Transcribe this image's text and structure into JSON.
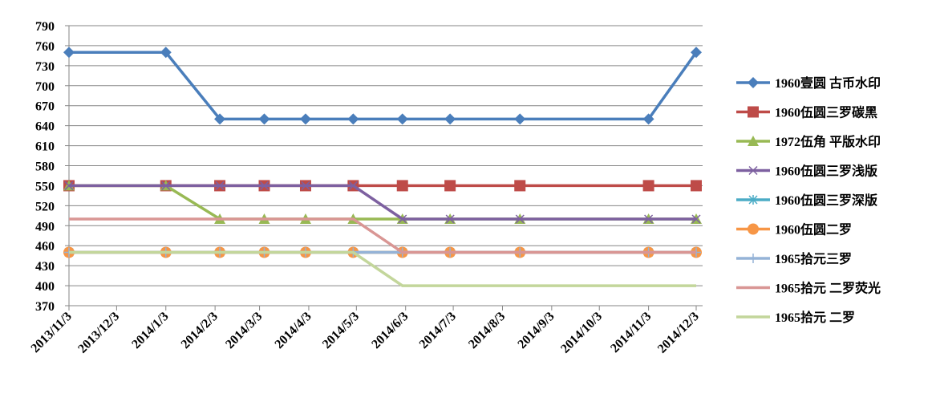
{
  "chart_data": {
    "type": "line",
    "x": [
      "2013/11/3",
      "2014/1/3",
      "2014/2/6",
      "2014/3/6",
      "2014/4/1",
      "2014/5/1",
      "2014/6/1",
      "2014/7/1",
      "2014/8/14",
      "2014/11/3",
      "2014/12/3"
    ],
    "xlim": [
      "2013/11/3",
      "2014/12/3"
    ],
    "xticks": [
      "2013/11/3",
      "2013/12/3",
      "2014/1/3",
      "2014/2/3",
      "2014/3/3",
      "2014/4/3",
      "2014/5/3",
      "2014/6/3",
      "2014/7/3",
      "2014/8/3",
      "2014/9/3",
      "2014/10/3",
      "2014/11/3",
      "2014/12/3"
    ],
    "ylim": [
      370,
      790
    ],
    "yticks": [
      370,
      400,
      430,
      460,
      490,
      520,
      550,
      580,
      610,
      640,
      670,
      700,
      730,
      760,
      790
    ],
    "grid": true,
    "series": [
      {
        "name": "1960壹圆 古币水印",
        "color": "#4a7ebb",
        "marker": "diamond",
        "values": [
          750,
          750,
          650,
          650,
          650,
          650,
          650,
          650,
          650,
          650,
          750
        ]
      },
      {
        "name": "1960伍圆三罗碳黑",
        "color": "#be4b48",
        "marker": "square",
        "values": [
          550,
          550,
          550,
          550,
          550,
          550,
          550,
          550,
          550,
          550,
          550
        ]
      },
      {
        "name": "1972伍角 平版水印",
        "color": "#98b954",
        "marker": "triangle",
        "values": [
          550,
          550,
          500,
          500,
          500,
          500,
          500,
          500,
          500,
          500,
          500
        ]
      },
      {
        "name": "1960伍圆三罗浅版",
        "color": "#7d60a0",
        "marker": "x",
        "values": [
          550,
          550,
          550,
          550,
          550,
          550,
          500,
          500,
          500,
          500,
          500
        ]
      },
      {
        "name": "1960伍圆三罗深版",
        "color": "#4bacc6",
        "marker": "star",
        "values": [
          450,
          450,
          450,
          450,
          450,
          450,
          450,
          450,
          450,
          450,
          450
        ]
      },
      {
        "name": "1960伍圆二罗",
        "color": "#f79646",
        "marker": "circle",
        "values": [
          450,
          450,
          450,
          450,
          450,
          450,
          450,
          450,
          450,
          450,
          450
        ]
      },
      {
        "name": "1965拾元三罗",
        "color": "#95b3d7",
        "marker": "plus",
        "values": [
          450,
          450,
          450,
          450,
          450,
          450,
          450,
          450,
          450,
          450,
          450
        ]
      },
      {
        "name": "1965拾元 二罗荧光",
        "color": "#d99694",
        "marker": "none",
        "values": [
          500,
          500,
          500,
          500,
          500,
          500,
          450,
          450,
          450,
          450,
          450
        ]
      },
      {
        "name": "1965拾元 二罗",
        "color": "#c3d69b",
        "marker": "none",
        "values": [
          450,
          450,
          450,
          450,
          450,
          450,
          400,
          400,
          400,
          400,
          400
        ]
      }
    ]
  }
}
